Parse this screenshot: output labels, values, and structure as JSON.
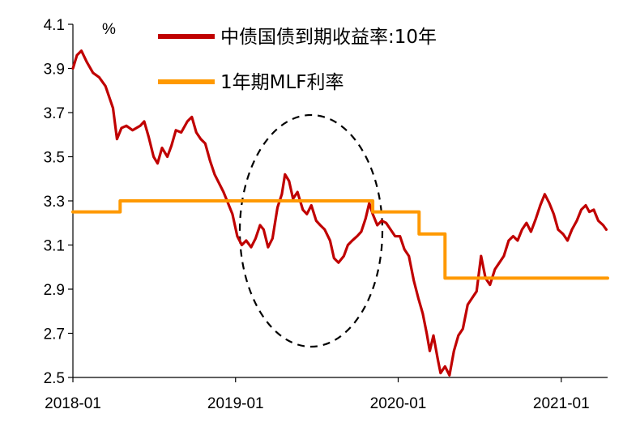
{
  "chart_data": {
    "type": "line",
    "title": "",
    "unit_label": "%",
    "xlabel": "",
    "ylabel": "",
    "ylim": [
      2.5,
      4.1
    ],
    "xlim": [
      "2018-01-01",
      "2021-04-15"
    ],
    "y_ticks": [
      "2.5",
      "2.7",
      "2.9",
      "3.1",
      "3.3",
      "3.5",
      "3.7",
      "3.9",
      "4.1"
    ],
    "x_ticks": [
      {
        "date": "2018-01-01",
        "label": "2018-01"
      },
      {
        "date": "2019-01-01",
        "label": "2019-01"
      },
      {
        "date": "2020-01-01",
        "label": "2020-01"
      },
      {
        "date": "2021-01-01",
        "label": "2021-01"
      }
    ],
    "grid": false,
    "legend_position": "top",
    "annotation": "dashed ellipse highlighting the period 2019-01 to 2019-12",
    "series": [
      {
        "name": "中债国债到期收益率:10年",
        "color": "#c00000",
        "points": [
          [
            "2018-01-01",
            3.9
          ],
          [
            "2018-01-10",
            3.96
          ],
          [
            "2018-01-20",
            3.98
          ],
          [
            "2018-02-01",
            3.93
          ],
          [
            "2018-02-15",
            3.88
          ],
          [
            "2018-03-01",
            3.86
          ],
          [
            "2018-03-15",
            3.82
          ],
          [
            "2018-04-01",
            3.72
          ],
          [
            "2018-04-10",
            3.58
          ],
          [
            "2018-04-20",
            3.63
          ],
          [
            "2018-05-01",
            3.64
          ],
          [
            "2018-05-15",
            3.62
          ],
          [
            "2018-06-01",
            3.64
          ],
          [
            "2018-06-10",
            3.66
          ],
          [
            "2018-06-20",
            3.59
          ],
          [
            "2018-07-01",
            3.5
          ],
          [
            "2018-07-10",
            3.47
          ],
          [
            "2018-07-20",
            3.54
          ],
          [
            "2018-08-01",
            3.5
          ],
          [
            "2018-08-10",
            3.55
          ],
          [
            "2018-08-20",
            3.62
          ],
          [
            "2018-09-01",
            3.61
          ],
          [
            "2018-09-15",
            3.66
          ],
          [
            "2018-09-25",
            3.68
          ],
          [
            "2018-10-05",
            3.61
          ],
          [
            "2018-10-15",
            3.58
          ],
          [
            "2018-10-25",
            3.56
          ],
          [
            "2018-11-05",
            3.48
          ],
          [
            "2018-11-15",
            3.42
          ],
          [
            "2018-11-25",
            3.38
          ],
          [
            "2018-12-05",
            3.34
          ],
          [
            "2018-12-15",
            3.29
          ],
          [
            "2018-12-25",
            3.24
          ],
          [
            "2019-01-05",
            3.14
          ],
          [
            "2019-01-15",
            3.1
          ],
          [
            "2019-01-25",
            3.12
          ],
          [
            "2019-02-05",
            3.09
          ],
          [
            "2019-02-15",
            3.13
          ],
          [
            "2019-02-25",
            3.19
          ],
          [
            "2019-03-05",
            3.17
          ],
          [
            "2019-03-15",
            3.09
          ],
          [
            "2019-03-25",
            3.13
          ],
          [
            "2019-04-05",
            3.27
          ],
          [
            "2019-04-15",
            3.33
          ],
          [
            "2019-04-22",
            3.42
          ],
          [
            "2019-05-01",
            3.39
          ],
          [
            "2019-05-10",
            3.31
          ],
          [
            "2019-05-20",
            3.34
          ],
          [
            "2019-06-01",
            3.26
          ],
          [
            "2019-06-10",
            3.24
          ],
          [
            "2019-06-20",
            3.28
          ],
          [
            "2019-07-01",
            3.21
          ],
          [
            "2019-07-10",
            3.19
          ],
          [
            "2019-07-20",
            3.17
          ],
          [
            "2019-08-01",
            3.12
          ],
          [
            "2019-08-10",
            3.04
          ],
          [
            "2019-08-20",
            3.02
          ],
          [
            "2019-09-01",
            3.05
          ],
          [
            "2019-09-10",
            3.1
          ],
          [
            "2019-09-20",
            3.12
          ],
          [
            "2019-10-01",
            3.14
          ],
          [
            "2019-10-10",
            3.16
          ],
          [
            "2019-10-20",
            3.22
          ],
          [
            "2019-10-28",
            3.29
          ],
          [
            "2019-11-05",
            3.24
          ],
          [
            "2019-11-15",
            3.19
          ],
          [
            "2019-11-25",
            3.21
          ],
          [
            "2019-12-05",
            3.2
          ],
          [
            "2019-12-15",
            3.17
          ],
          [
            "2019-12-25",
            3.14
          ],
          [
            "2020-01-05",
            3.14
          ],
          [
            "2020-01-15",
            3.08
          ],
          [
            "2020-01-25",
            3.05
          ],
          [
            "2020-02-05",
            2.94
          ],
          [
            "2020-02-15",
            2.86
          ],
          [
            "2020-02-25",
            2.79
          ],
          [
            "2020-03-05",
            2.7
          ],
          [
            "2020-03-12",
            2.62
          ],
          [
            "2020-03-20",
            2.69
          ],
          [
            "2020-03-30",
            2.58
          ],
          [
            "2020-04-05",
            2.52
          ],
          [
            "2020-04-15",
            2.55
          ],
          [
            "2020-04-25",
            2.51
          ],
          [
            "2020-05-05",
            2.62
          ],
          [
            "2020-05-15",
            2.69
          ],
          [
            "2020-05-25",
            2.72
          ],
          [
            "2020-06-05",
            2.83
          ],
          [
            "2020-06-15",
            2.86
          ],
          [
            "2020-06-25",
            2.89
          ],
          [
            "2020-07-05",
            3.05
          ],
          [
            "2020-07-15",
            2.95
          ],
          [
            "2020-07-25",
            2.92
          ],
          [
            "2020-08-05",
            2.99
          ],
          [
            "2020-08-15",
            3.02
          ],
          [
            "2020-08-25",
            3.05
          ],
          [
            "2020-09-05",
            3.12
          ],
          [
            "2020-09-15",
            3.14
          ],
          [
            "2020-09-25",
            3.12
          ],
          [
            "2020-10-05",
            3.17
          ],
          [
            "2020-10-15",
            3.2
          ],
          [
            "2020-10-25",
            3.16
          ],
          [
            "2020-11-05",
            3.22
          ],
          [
            "2020-11-15",
            3.28
          ],
          [
            "2020-11-25",
            3.33
          ],
          [
            "2020-12-05",
            3.29
          ],
          [
            "2020-12-15",
            3.24
          ],
          [
            "2020-12-25",
            3.17
          ],
          [
            "2021-01-05",
            3.15
          ],
          [
            "2021-01-15",
            3.12
          ],
          [
            "2021-01-25",
            3.17
          ],
          [
            "2021-02-05",
            3.21
          ],
          [
            "2021-02-15",
            3.26
          ],
          [
            "2021-02-25",
            3.28
          ],
          [
            "2021-03-05",
            3.25
          ],
          [
            "2021-03-15",
            3.26
          ],
          [
            "2021-03-25",
            3.21
          ],
          [
            "2021-04-05",
            3.19
          ],
          [
            "2021-04-12",
            3.17
          ]
        ]
      },
      {
        "name": "1年期MLF利率",
        "color": "#ff9900",
        "step": true,
        "points": [
          [
            "2018-01-01",
            3.25
          ],
          [
            "2018-04-17",
            3.3
          ],
          [
            "2019-11-05",
            3.25
          ],
          [
            "2020-02-17",
            3.15
          ],
          [
            "2020-04-15",
            2.95
          ],
          [
            "2021-04-15",
            2.95
          ]
        ]
      }
    ]
  }
}
